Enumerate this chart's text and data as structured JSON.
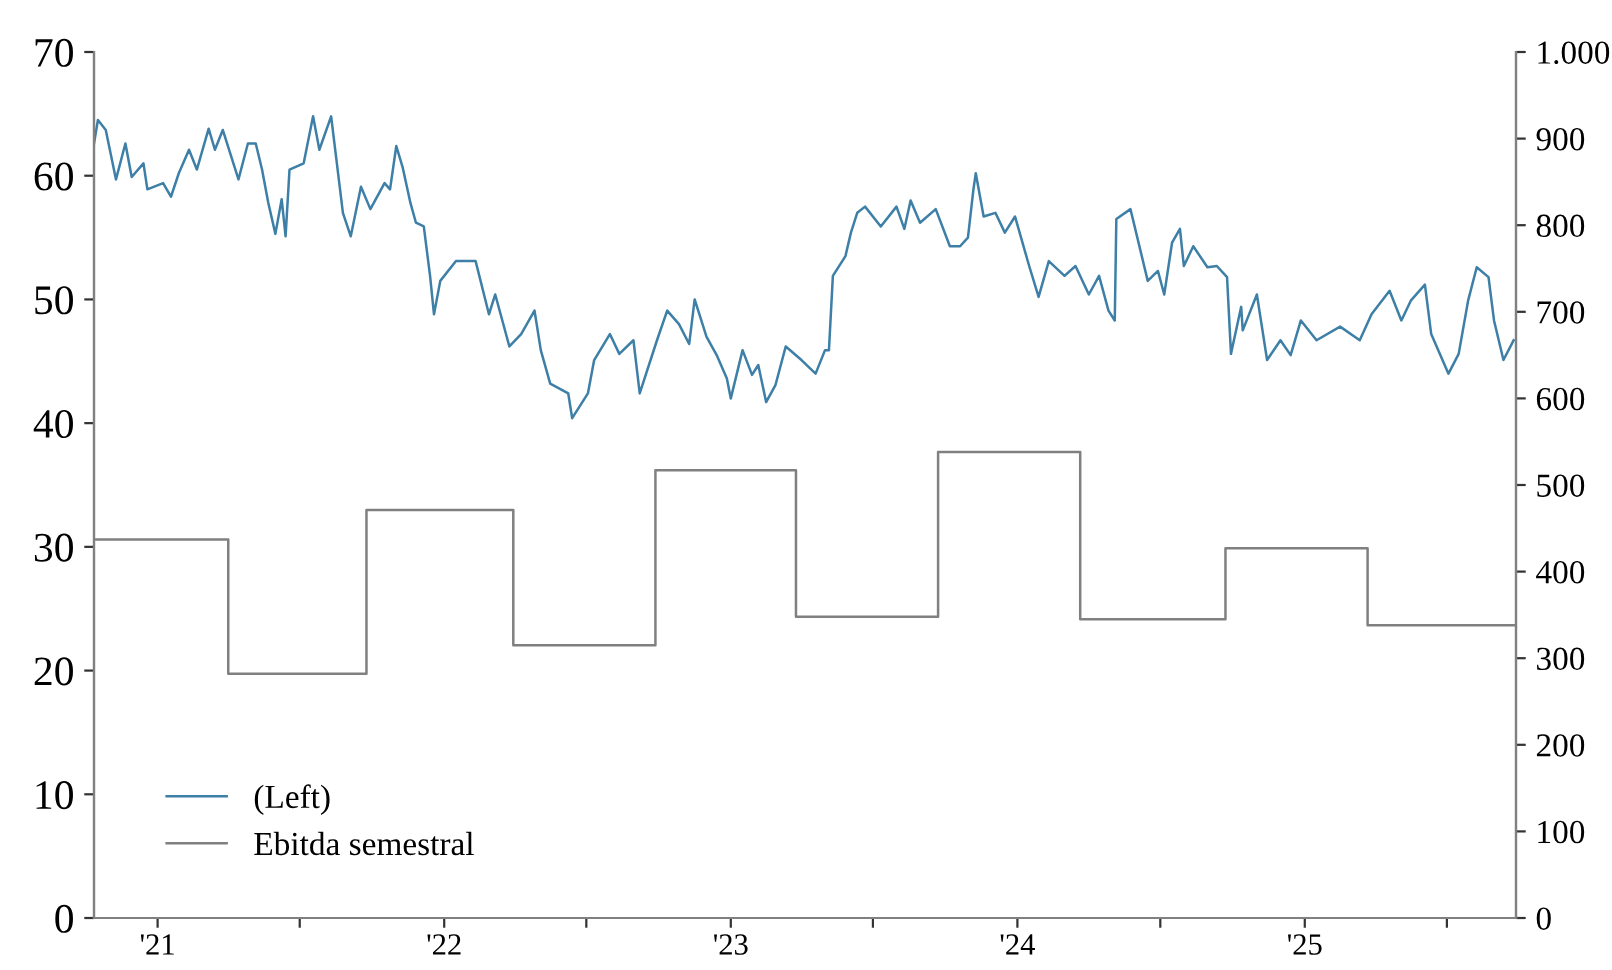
{
  "chart_data": {
    "type": "line",
    "xlim": [
      "2020-10-12",
      "2025-09-27"
    ],
    "xticks": [
      {
        "value": "2021-01-01",
        "label": "'21"
      },
      {
        "value": "2021-07-01",
        "label": null
      },
      {
        "value": "2022-01-01",
        "label": "'22"
      },
      {
        "value": "2022-07-01",
        "label": null
      },
      {
        "value": "2023-01-01",
        "label": "'23"
      },
      {
        "value": "2023-07-01",
        "label": null
      },
      {
        "value": "2024-01-01",
        "label": "'24"
      },
      {
        "value": "2024-07-01",
        "label": null
      },
      {
        "value": "2025-01-01",
        "label": "'25"
      },
      {
        "value": "2025-07-01",
        "label": null
      }
    ],
    "ylim": [
      0,
      70
    ],
    "yticks": [
      0,
      10,
      20,
      30,
      40,
      50,
      60,
      70
    ],
    "y2lim": [
      0,
      1000
    ],
    "y2ticks": [
      0,
      100,
      200,
      300,
      400,
      500,
      600,
      700,
      800,
      900,
      {
        "value": 1000,
        "label": "1.000"
      }
    ],
    "legend": "bottom left",
    "series": [
      {
        "name": "(Left)",
        "color": "#3d7fa6",
        "x": [
          "2020-10-12",
          "2020-10-17",
          "2020-10-27",
          "2020-11-09",
          "2020-11-21",
          "2020-11-29",
          "2020-12-14",
          "2020-12-19",
          "2021-01-08",
          "2021-01-18",
          "2021-01-28",
          "2021-02-10",
          "2021-02-20",
          "2021-03-07",
          "2021-03-15",
          "2021-03-25",
          "2021-04-14",
          "2021-04-26",
          "2021-05-06",
          "2021-05-14",
          "2021-05-22",
          "2021-05-31",
          "2021-06-08",
          "2021-06-13",
          "2021-06-18",
          "2021-07-06",
          "2021-07-18",
          "2021-07-26",
          "2021-08-10",
          "2021-08-25",
          "2021-09-04",
          "2021-09-17",
          "2021-09-29",
          "2021-10-17",
          "2021-10-24",
          "2021-11-01",
          "2021-11-09",
          "2021-11-19",
          "2021-11-26",
          "2021-12-06",
          "2021-12-14",
          "2021-12-19",
          "2021-12-27",
          "2022-01-16",
          "2022-02-10",
          "2022-02-27",
          "2022-03-07",
          "2022-03-25",
          "2022-04-09",
          "2022-04-26",
          "2022-05-04",
          "2022-05-16",
          "2022-06-08",
          "2022-06-13",
          "2022-07-03",
          "2022-07-11",
          "2022-07-31",
          "2022-08-12",
          "2022-08-30",
          "2022-09-07",
          "2022-09-29",
          "2022-10-12",
          "2022-10-27",
          "2022-11-09",
          "2022-11-16",
          "2022-12-01",
          "2022-12-14",
          "2022-12-27",
          "2023-01-01",
          "2023-01-16",
          "2023-01-28",
          "2023-02-05",
          "2023-02-15",
          "2023-02-27",
          "2023-03-12",
          "2023-04-01",
          "2023-04-19",
          "2023-05-01",
          "2023-05-06",
          "2023-05-11",
          "2023-05-27",
          "2023-06-03",
          "2023-06-11",
          "2023-06-21",
          "2023-07-11",
          "2023-07-31",
          "2023-08-10",
          "2023-08-18",
          "2023-08-30",
          "2023-09-19",
          "2023-10-07",
          "2023-10-20",
          "2023-10-30",
          "2023-11-06",
          "2023-11-09",
          "2023-11-19",
          "2023-12-04",
          "2023-12-16",
          "2023-12-29",
          "2024-01-16",
          "2024-01-28",
          "2024-02-10",
          "2024-03-01",
          "2024-03-15",
          "2024-04-01",
          "2024-04-14",
          "2024-04-26",
          "2024-05-04",
          "2024-05-06",
          "2024-05-24",
          "2024-06-15",
          "2024-06-28",
          "2024-07-06",
          "2024-07-16",
          "2024-07-26",
          "2024-07-31",
          "2024-08-12",
          "2024-08-30",
          "2024-09-11",
          "2024-09-24",
          "2024-09-29",
          "2024-10-12",
          "2024-10-14",
          "2024-11-01",
          "2024-11-14",
          "2024-12-01",
          "2024-12-14",
          "2024-12-27",
          "2025-01-16",
          "2025-02-15",
          "2025-03-12",
          "2025-03-27",
          "2025-04-19",
          "2025-05-04",
          "2025-05-16",
          "2025-06-03",
          "2025-06-11",
          "2025-07-03",
          "2025-07-16",
          "2025-07-28",
          "2025-08-08",
          "2025-08-23",
          "2025-08-30",
          "2025-09-11",
          "2025-09-24"
        ],
        "values": [
          62.6,
          64.5,
          63.7,
          59.7,
          62.6,
          59.9,
          61.0,
          58.9,
          59.4,
          58.3,
          60.2,
          62.1,
          60.5,
          63.8,
          62.1,
          63.7,
          59.7,
          62.6,
          62.6,
          60.5,
          57.8,
          55.3,
          58.1,
          55.1,
          60.5,
          61.0,
          64.8,
          62.1,
          64.8,
          57.0,
          55.1,
          59.1,
          57.3,
          59.4,
          58.9,
          62.4,
          60.7,
          57.8,
          56.2,
          55.9,
          51.9,
          48.8,
          51.5,
          53.1,
          53.1,
          48.8,
          50.4,
          46.2,
          47.2,
          49.1,
          45.9,
          43.2,
          42.4,
          40.4,
          42.4,
          45.1,
          47.2,
          45.6,
          46.7,
          42.4,
          46.7,
          49.1,
          48.0,
          46.4,
          50.0,
          47.0,
          45.5,
          43.6,
          42.0,
          45.9,
          43.9,
          44.7,
          41.7,
          43.1,
          46.2,
          45.1,
          44.0,
          45.9,
          45.9,
          51.9,
          53.5,
          55.4,
          57.0,
          57.5,
          55.9,
          57.5,
          55.7,
          58.0,
          56.2,
          57.3,
          54.3,
          54.3,
          55.0,
          58.9,
          60.2,
          56.7,
          57.0,
          55.4,
          56.7,
          52.7,
          50.2,
          53.1,
          51.9,
          52.7,
          50.4,
          51.9,
          49.1,
          48.3,
          56.5,
          57.3,
          51.5,
          52.3,
          50.4,
          54.6,
          55.7,
          52.7,
          54.3,
          52.6,
          52.7,
          51.8,
          45.6,
          49.4,
          47.5,
          50.4,
          45.1,
          46.7,
          45.5,
          48.3,
          46.7,
          47.8,
          46.7,
          48.8,
          50.7,
          48.3,
          49.9,
          51.2,
          47.2,
          44.0,
          45.6,
          49.9,
          52.6,
          51.8,
          48.3,
          45.1,
          46.7
        ]
      },
      {
        "name": "Ebitda semestral",
        "type": "step",
        "axis": "y2",
        "color": "#808080",
        "x": [
          "2020-10-12",
          "2021-04-01",
          "2021-09-24",
          "2022-03-30",
          "2022-09-27",
          "2023-03-25",
          "2023-09-22",
          "2024-03-21",
          "2024-09-22",
          "2025-03-22",
          "2025-09-27"
        ],
        "values": [
          437,
          282,
          471,
          315,
          517,
          348,
          538,
          345,
          427,
          338,
          338
        ]
      }
    ]
  }
}
